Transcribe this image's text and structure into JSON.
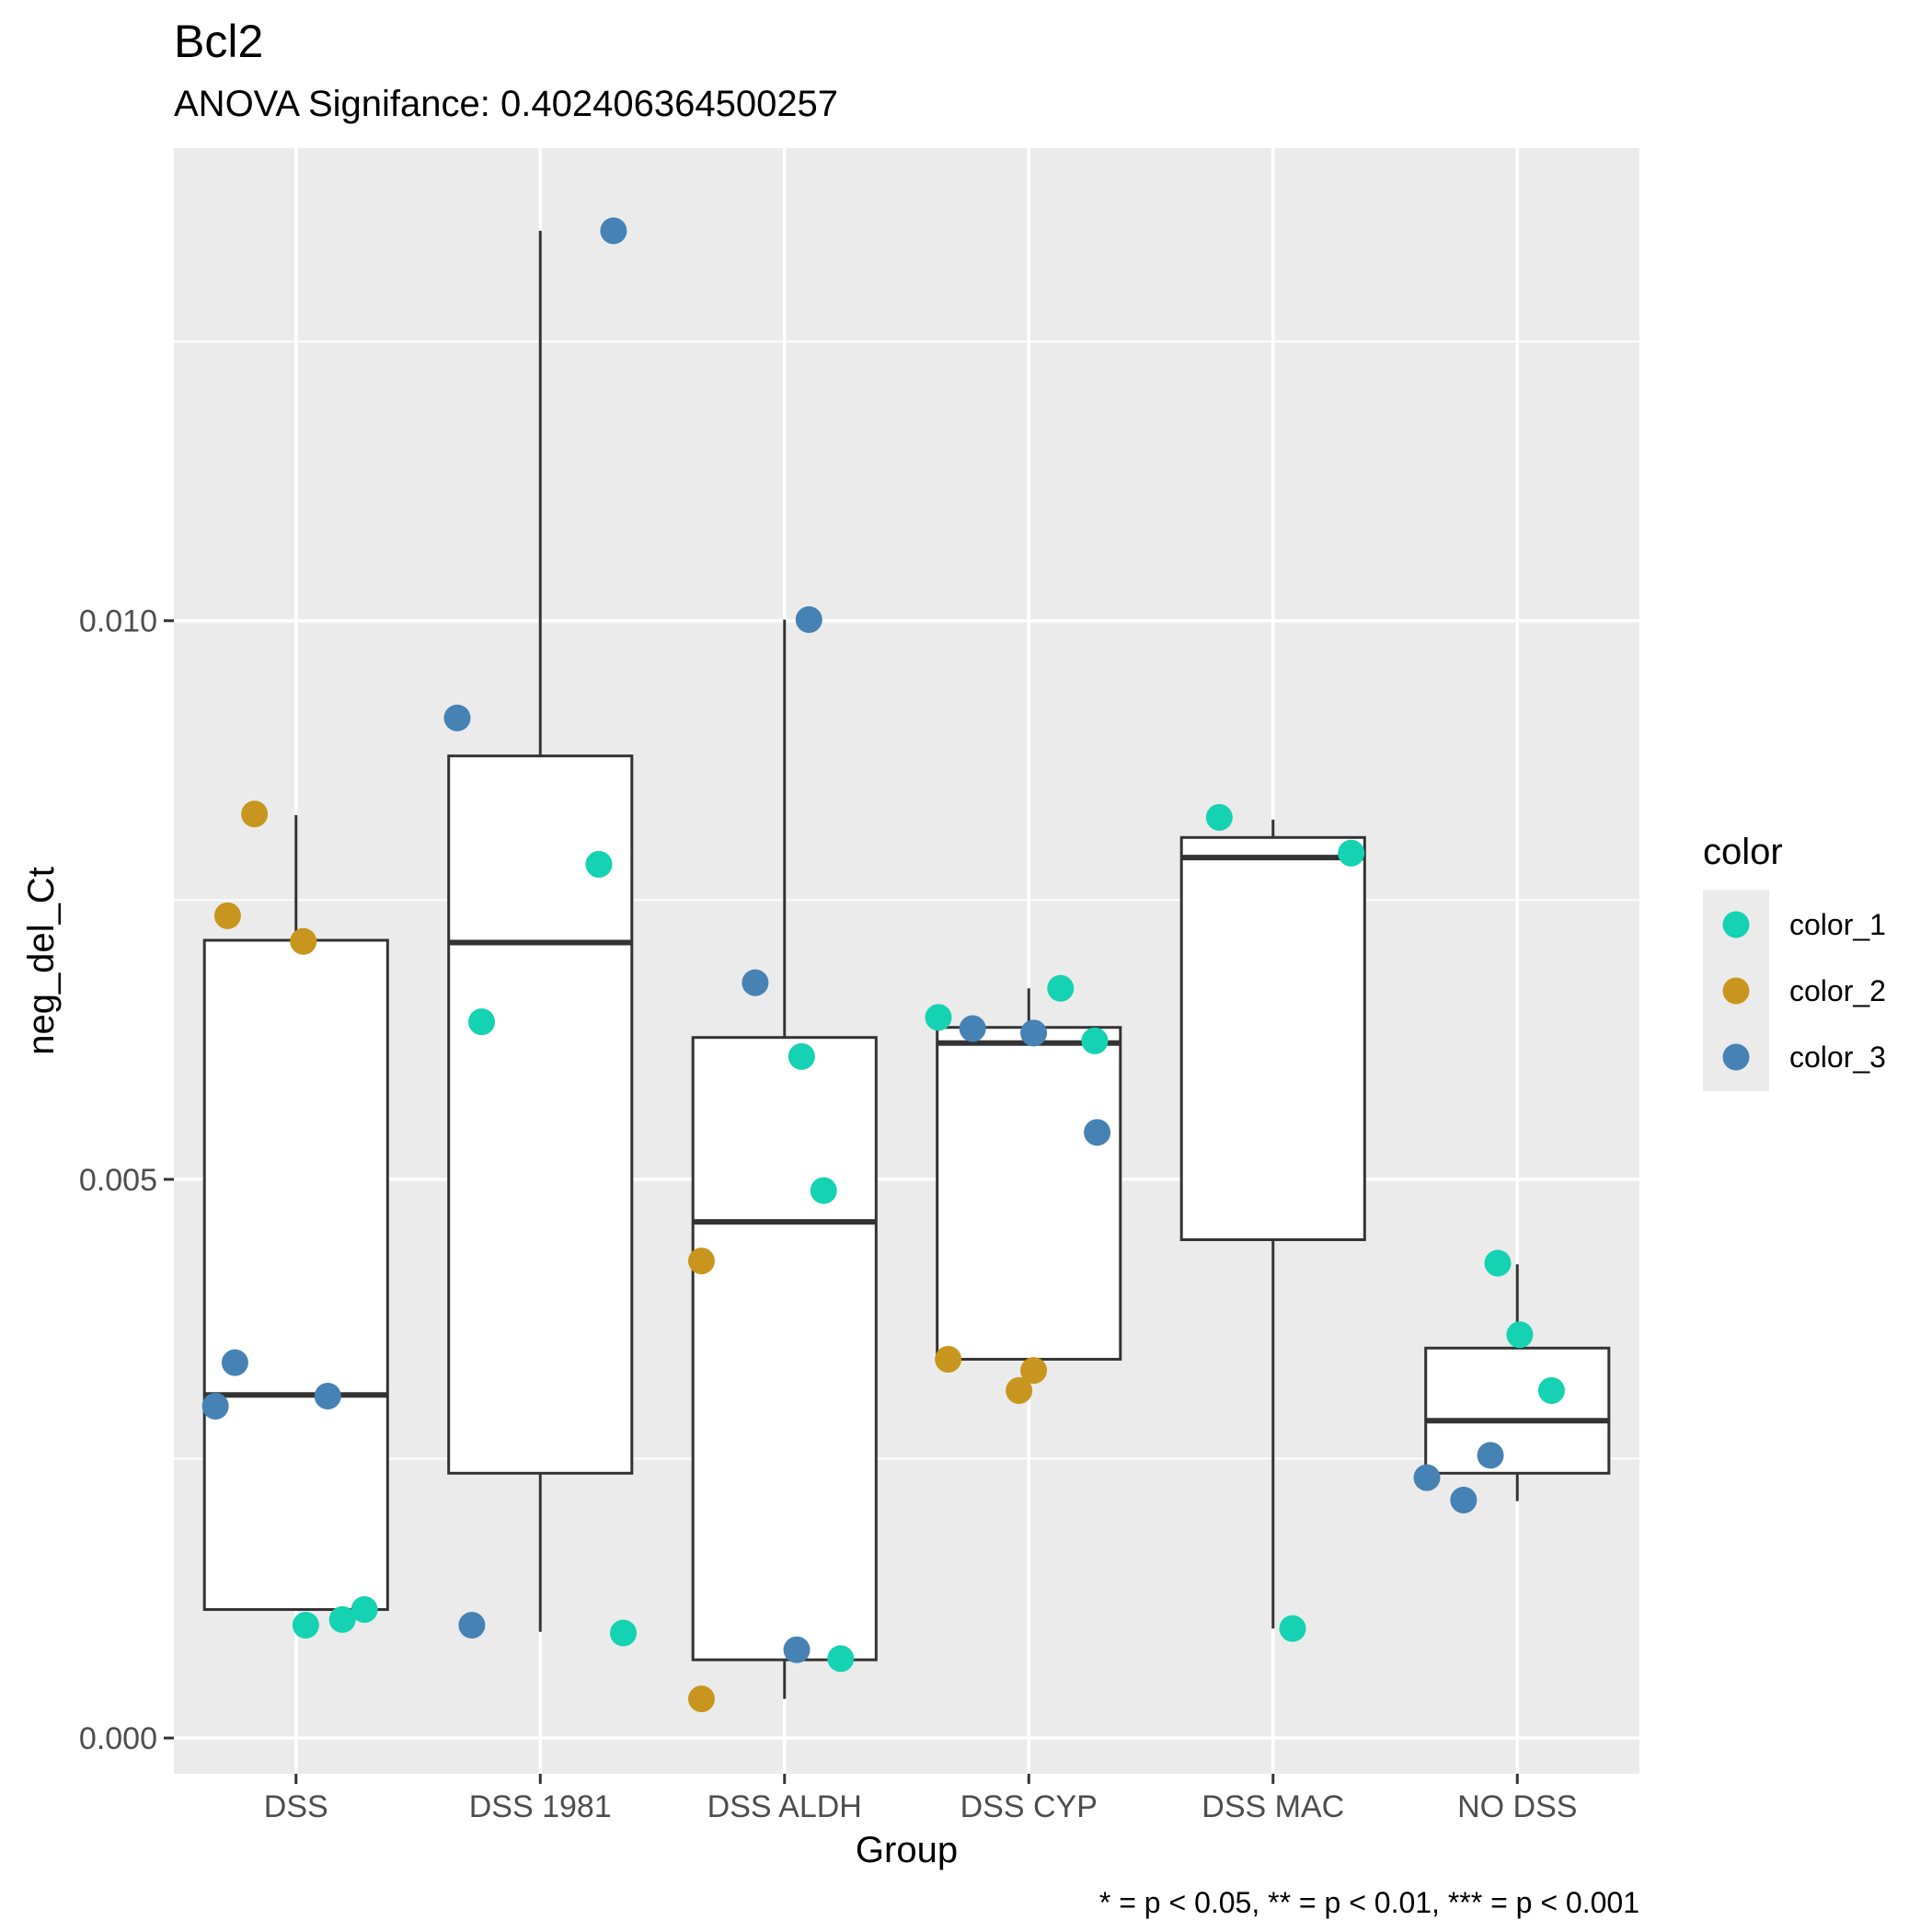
{
  "chart_data": {
    "type": "box",
    "title": "Bcl2",
    "subtitle": "ANOVA Signifance: 0.402406364500257",
    "xlabel": "Group",
    "ylabel": "neg_del_Ct",
    "caption": "* = p < 0.05, ** = p < 0.01, *** = p < 0.001",
    "ylim": [
      -0.00032,
      0.01423
    ],
    "yticks": [
      {
        "value": 0.0,
        "label": "0.000"
      },
      {
        "value": 0.005,
        "label": "0.005"
      },
      {
        "value": 0.01,
        "label": "0.010"
      }
    ],
    "ygrid_minor": [
      0.0025,
      0.0075,
      0.0125
    ],
    "grid": true,
    "panel_background": "#ebebeb",
    "categories": [
      "DSS",
      "DSS 1981",
      "DSS ALDH",
      "DSS CYP",
      "DSS MAC",
      "NO DSS"
    ],
    "boxes": [
      {
        "category": "DSS",
        "whisker_low": 0.00115,
        "q1": 0.00115,
        "median": 0.00307,
        "q3": 0.00714,
        "whisker_high": 0.00826
      },
      {
        "category": "DSS 1981",
        "whisker_low": 0.00095,
        "q1": 0.00237,
        "median": 0.00712,
        "q3": 0.00879,
        "whisker_high": 0.01349
      },
      {
        "category": "DSS ALDH",
        "whisker_low": 0.00035,
        "q1": 0.0007,
        "median": 0.00462,
        "q3": 0.00627,
        "whisker_high": 0.01001
      },
      {
        "category": "DSS CYP",
        "whisker_low": 0.00339,
        "q1": 0.00339,
        "median": 0.00622,
        "q3": 0.00636,
        "whisker_high": 0.00671
      },
      {
        "category": "DSS MAC",
        "whisker_low": 0.00098,
        "q1": 0.00446,
        "median": 0.00788,
        "q3": 0.00806,
        "whisker_high": 0.00822
      },
      {
        "category": "NO DSS",
        "whisker_low": 0.00212,
        "q1": 0.00237,
        "median": 0.00284,
        "q3": 0.00349,
        "whisker_high": 0.00424
      }
    ],
    "point_groups": [
      {
        "category": "DSS",
        "points": [
          {
            "x": -0.33,
            "y": 0.00297,
            "color": "color_3"
          },
          {
            "x": -0.28,
            "y": 0.00736,
            "color": "color_2"
          },
          {
            "x": -0.25,
            "y": 0.00336,
            "color": "color_3"
          },
          {
            "x": -0.17,
            "y": 0.00827,
            "color": "color_2"
          },
          {
            "x": 0.03,
            "y": 0.00713,
            "color": "color_2"
          },
          {
            "x": 0.04,
            "y": 0.00101,
            "color": "color_1"
          },
          {
            "x": 0.13,
            "y": 0.00306,
            "color": "color_3"
          },
          {
            "x": 0.19,
            "y": 0.00106,
            "color": "color_1"
          },
          {
            "x": 0.28,
            "y": 0.00115,
            "color": "color_1"
          }
        ]
      },
      {
        "category": "DSS 1981",
        "points": [
          {
            "x": -0.34,
            "y": 0.00913,
            "color": "color_3"
          },
          {
            "x": -0.28,
            "y": 0.00101,
            "color": "color_3"
          },
          {
            "x": -0.24,
            "y": 0.00641,
            "color": "color_1"
          },
          {
            "x": 0.24,
            "y": 0.00782,
            "color": "color_1"
          },
          {
            "x": 0.3,
            "y": 0.01349,
            "color": "color_3"
          },
          {
            "x": 0.34,
            "y": 0.00094,
            "color": "color_1"
          }
        ]
      },
      {
        "category": "DSS ALDH",
        "points": [
          {
            "x": -0.34,
            "y": 0.00427,
            "color": "color_2"
          },
          {
            "x": -0.34,
            "y": 0.00035,
            "color": "color_2"
          },
          {
            "x": -0.12,
            "y": 0.00676,
            "color": "color_3"
          },
          {
            "x": 0.05,
            "y": 0.00079,
            "color": "color_3"
          },
          {
            "x": 0.07,
            "y": 0.0061,
            "color": "color_1"
          },
          {
            "x": 0.1,
            "y": 0.01001,
            "color": "color_3"
          },
          {
            "x": 0.16,
            "y": 0.0049,
            "color": "color_1"
          },
          {
            "x": 0.23,
            "y": 0.00071,
            "color": "color_1"
          }
        ]
      },
      {
        "category": "DSS CYP",
        "points": [
          {
            "x": -0.37,
            "y": 0.00645,
            "color": "color_1"
          },
          {
            "x": -0.33,
            "y": 0.00339,
            "color": "color_2"
          },
          {
            "x": -0.23,
            "y": 0.00635,
            "color": "color_3"
          },
          {
            "x": -0.04,
            "y": 0.00311,
            "color": "color_2"
          },
          {
            "x": 0.02,
            "y": 0.00631,
            "color": "color_3"
          },
          {
            "x": 0.02,
            "y": 0.00329,
            "color": "color_2"
          },
          {
            "x": 0.13,
            "y": 0.00671,
            "color": "color_1"
          },
          {
            "x": 0.27,
            "y": 0.00624,
            "color": "color_1"
          },
          {
            "x": 0.28,
            "y": 0.00542,
            "color": "color_3"
          }
        ]
      },
      {
        "category": "DSS MAC",
        "points": [
          {
            "x": -0.22,
            "y": 0.00824,
            "color": "color_1"
          },
          {
            "x": 0.08,
            "y": 0.00098,
            "color": "color_1"
          },
          {
            "x": 0.32,
            "y": 0.00792,
            "color": "color_1"
          }
        ]
      },
      {
        "category": "NO DSS",
        "points": [
          {
            "x": -0.37,
            "y": 0.00233,
            "color": "color_3"
          },
          {
            "x": -0.22,
            "y": 0.00213,
            "color": "color_3"
          },
          {
            "x": -0.11,
            "y": 0.00253,
            "color": "color_3"
          },
          {
            "x": -0.08,
            "y": 0.00425,
            "color": "color_1"
          },
          {
            "x": 0.01,
            "y": 0.00361,
            "color": "color_1"
          },
          {
            "x": 0.14,
            "y": 0.00311,
            "color": "color_1"
          }
        ]
      }
    ],
    "legend": {
      "title": "color",
      "position": "right",
      "entries": [
        {
          "key": "color_1",
          "label": "color_1",
          "color": "#14d2b2"
        },
        {
          "key": "color_2",
          "label": "color_2",
          "color": "#c8961e"
        },
        {
          "key": "color_3",
          "label": "color_3",
          "color": "#4682b4"
        }
      ]
    }
  }
}
